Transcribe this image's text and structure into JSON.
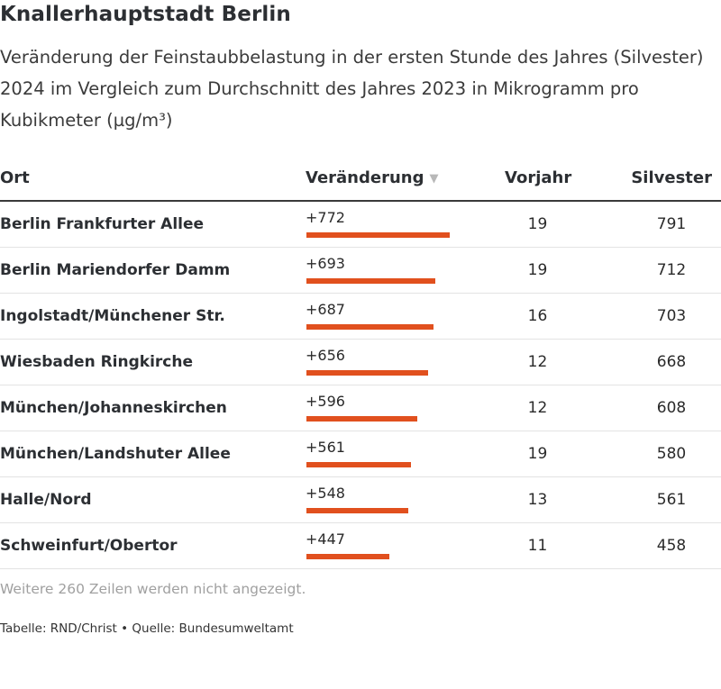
{
  "title": "Knallerhauptstadt Berlin",
  "subtitle": "Veränderung der Feinstaubbelastung in der ersten Stunde des Jahres (Silvester) 2024 im Vergleich zum Durchschnitt des Jahres 2023 in Mikrogramm pro Kubikmeter (µg/m³)",
  "columns": {
    "ort": "Ort",
    "change": "Veränderung",
    "prev": "Vorjahr",
    "silv": "Silvester"
  },
  "more_rows_note": "Weitere 260 Zeilen werden nicht angezeigt.",
  "footer": "Tabelle: RND/Christ • Quelle: Bundesumweltamt",
  "colors": {
    "bar": "#e1501e"
  },
  "chart_data": {
    "type": "table",
    "bar_max": 772,
    "rows": [
      {
        "ort": "Berlin Frankfurter Allee",
        "change": 772,
        "change_label": "+772",
        "prev": "19",
        "silv": "791"
      },
      {
        "ort": "Berlin Mariendorfer Damm",
        "change": 693,
        "change_label": "+693",
        "prev": "19",
        "silv": "712"
      },
      {
        "ort": "Ingolstadt/Münchener Str.",
        "change": 687,
        "change_label": "+687",
        "prev": "16",
        "silv": "703"
      },
      {
        "ort": "Wiesbaden Ringkirche",
        "change": 656,
        "change_label": "+656",
        "prev": "12",
        "silv": "668"
      },
      {
        "ort": "München/Johanneskirchen",
        "change": 596,
        "change_label": "+596",
        "prev": "12",
        "silv": "608"
      },
      {
        "ort": "München/Landshuter Allee",
        "change": 561,
        "change_label": "+561",
        "prev": "19",
        "silv": "580"
      },
      {
        "ort": "Halle/Nord",
        "change": 548,
        "change_label": "+548",
        "prev": "13",
        "silv": "561"
      },
      {
        "ort": "Schweinfurt/Obertor",
        "change": 447,
        "change_label": "+447",
        "prev": "11",
        "silv": "458"
      }
    ]
  }
}
